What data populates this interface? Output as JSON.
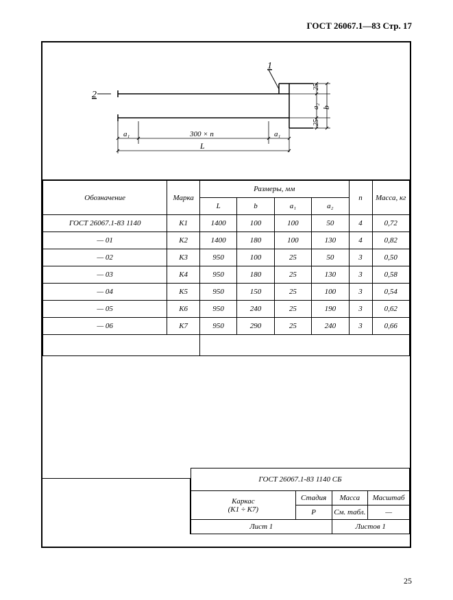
{
  "header": "ГОСТ 26067.1—83 Стр. 17",
  "footer_page": "25",
  "diagram": {
    "callout1": "1",
    "callout2": "2",
    "label_a1_left": "a₁",
    "label_a1_right": "a₁",
    "label_300n": "300 × n",
    "label_L": "L",
    "label_25_top": "25",
    "label_25_bot": "25",
    "label_a2": "a₂",
    "label_b": "b"
  },
  "table": {
    "head_desig": "Обозначение",
    "head_mark": "Марка",
    "head_dims": "Размеры, мм",
    "head_L": "L",
    "head_b": "b",
    "head_a1": "a₁",
    "head_a2": "a₂",
    "head_n": "n",
    "head_mass": "Масса, кг",
    "rows": [
      {
        "desig": "ГОСТ 26067.1-83  1140",
        "mark": "К1",
        "L": "1400",
        "b": "100",
        "a1": "100",
        "a2": "50",
        "n": "4",
        "mass": "0,72"
      },
      {
        "desig": "— 01",
        "mark": "К2",
        "L": "1400",
        "b": "180",
        "a1": "100",
        "a2": "130",
        "n": "4",
        "mass": "0,82"
      },
      {
        "desig": "— 02",
        "mark": "К3",
        "L": "950",
        "b": "100",
        "a1": "25",
        "a2": "50",
        "n": "3",
        "mass": "0,50"
      },
      {
        "desig": "— 03",
        "mark": "К4",
        "L": "950",
        "b": "180",
        "a1": "25",
        "a2": "130",
        "n": "3",
        "mass": "0,58"
      },
      {
        "desig": "— 04",
        "mark": "К5",
        "L": "950",
        "b": "150",
        "a1": "25",
        "a2": "100",
        "n": "3",
        "mass": "0,54"
      },
      {
        "desig": "— 05",
        "mark": "К6",
        "L": "950",
        "b": "240",
        "a1": "25",
        "a2": "190",
        "n": "3",
        "mass": "0,62"
      },
      {
        "desig": "— 06",
        "mark": "К7",
        "L": "950",
        "b": "290",
        "a1": "25",
        "a2": "240",
        "n": "3",
        "mass": "0,66"
      }
    ]
  },
  "titleblock": {
    "main": "ГОСТ 26067.1-83   1140 СБ",
    "name1": "Каркас",
    "name2": "(К1 ÷ К7)",
    "stadia_h": "Стадия",
    "massa_h": "Масса",
    "masstab_h": "Масштаб",
    "stadia": "Р",
    "massa": "См. табл.",
    "masstab": "—",
    "list": "Лист 1",
    "listov": "Листов 1"
  }
}
